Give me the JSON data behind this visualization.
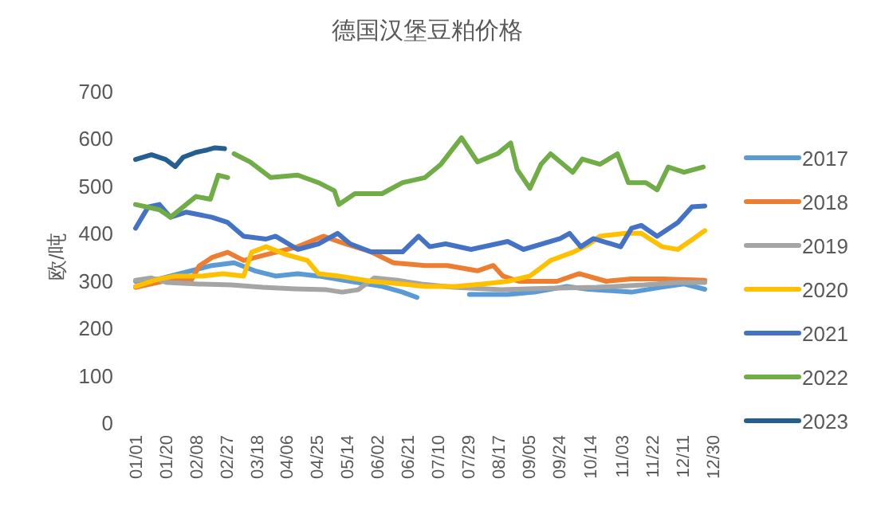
{
  "chart_data": {
    "type": "line",
    "title": "德国汉堡豆粕价格",
    "ylabel": "欧/吨",
    "xlim": [
      "--01-01",
      "--12-30"
    ],
    "ylim": [
      0,
      700
    ],
    "yticks": [
      0,
      100,
      200,
      300,
      400,
      500,
      600,
      700
    ],
    "xticks": [
      {
        "value": "--01-01",
        "label": "01/01"
      },
      {
        "value": "--01-20",
        "label": "01/20"
      },
      {
        "value": "--02-08",
        "label": "02/08"
      },
      {
        "value": "--02-27",
        "label": "02/27"
      },
      {
        "value": "--03-18",
        "label": "03/18"
      },
      {
        "value": "--04-06",
        "label": "04/06"
      },
      {
        "value": "--04-25",
        "label": "04/25"
      },
      {
        "value": "--05-14",
        "label": "05/14"
      },
      {
        "value": "--06-02",
        "label": "06/02"
      },
      {
        "value": "--06-21",
        "label": "06/21"
      },
      {
        "value": "--07-10",
        "label": "07/10"
      },
      {
        "value": "--07-29",
        "label": "07/29"
      },
      {
        "value": "--08-17",
        "label": "08/17"
      },
      {
        "value": "--09-05",
        "label": "09/05"
      },
      {
        "value": "--09-24",
        "label": "09/24"
      },
      {
        "value": "--10-14",
        "label": "10/14"
      },
      {
        "value": "--11-03",
        "label": "11/03"
      },
      {
        "value": "--11-22",
        "label": "11/22"
      },
      {
        "value": "--12-11",
        "label": "12/11"
      },
      {
        "value": "--12-30",
        "label": "12/30"
      }
    ],
    "grid": false,
    "legend": "right",
    "marker": "none",
    "line_style": "solid",
    "series": [
      {
        "name": "2017",
        "color": "#5b9bd5",
        "x": [
          "--01-01",
          "--01-16",
          "--02-18",
          "--03-04",
          "--03-17",
          "--03-30",
          "--04-13",
          "--04-26",
          "--05-16",
          "--06-05",
          "--06-18",
          "--06-27",
          "--07-10",
          "--07-30",
          "--08-23",
          "--09-09",
          "--09-29",
          "--10-13",
          "--11-09",
          "--11-27",
          "--12-12",
          "--12-25"
        ],
        "values": [
          298,
          303,
          331,
          337,
          320,
          309,
          314,
          309,
          298,
          287,
          275,
          264,
          null,
          270,
          270,
          275,
          287,
          281,
          275,
          285,
          292,
          281
        ]
      },
      {
        "name": "2018",
        "color": "#ed7d31",
        "x": [
          "--01-01",
          "--01-21",
          "--02-05",
          "--02-10",
          "--02-18",
          "--02-28",
          "--03-10",
          "--03-24",
          "--04-13",
          "--04-29",
          "--05-13",
          "--05-29",
          "--06-12",
          "--07-02",
          "--07-16",
          "--08-04",
          "--08-14",
          "--08-20",
          "--08-30",
          "--09-23",
          "--10-07",
          "--10-24",
          "--11-09",
          "--11-28",
          "--12-25"
        ],
        "values": [
          285,
          300,
          300,
          330,
          348,
          359,
          342,
          354,
          371,
          393,
          377,
          360,
          337,
          331,
          331,
          320,
          331,
          309,
          298,
          298,
          314,
          298,
          303,
          303,
          300
        ]
      },
      {
        "name": "2019",
        "color": "#a5a5a5",
        "x": [
          "--01-01",
          "--01-11",
          "--01-21",
          "--02-10",
          "--03-02",
          "--03-22",
          "--04-11",
          "--05-01",
          "--05-11",
          "--05-21",
          "--05-31",
          "--06-15",
          "--06-30",
          "--07-20",
          "--08-19",
          "--09-18",
          "--10-18",
          "--11-17",
          "--12-07",
          "--12-25"
        ],
        "values": [
          300,
          305,
          295,
          292,
          290,
          285,
          282,
          280,
          275,
          280,
          305,
          300,
          292,
          285,
          280,
          283,
          285,
          290,
          295,
          295
        ]
      },
      {
        "name": "2020",
        "color": "#ffc000",
        "x": [
          "--01-01",
          "--01-16",
          "--01-26",
          "--02-12",
          "--02-25",
          "--03-10",
          "--03-15",
          "--03-24",
          "--04-06",
          "--04-19",
          "--04-26",
          "--05-09",
          "--05-29",
          "--06-18",
          "--07-02",
          "--07-21",
          "--08-07",
          "--08-23",
          "--09-06",
          "--09-19",
          "--10-03",
          "--10-13",
          "--10-20",
          "--11-05",
          "--11-15",
          "--11-28",
          "--12-08",
          "--12-18",
          "--12-25"
        ],
        "values": [
          287,
          303,
          309,
          309,
          314,
          309,
          359,
          371,
          354,
          342,
          314,
          309,
          298,
          292,
          287,
          287,
          292,
          298,
          309,
          342,
          359,
          376,
          393,
          399,
          399,
          371,
          365,
          388,
          405
        ]
      },
      {
        "name": "2021",
        "color": "#4472c4",
        "x": [
          "--01-01",
          "--01-04",
          "--01-09",
          "--01-16",
          "--01-23",
          "--02-02",
          "--02-18",
          "--02-28",
          "--03-10",
          "--03-24",
          "--03-30",
          "--04-13",
          "--04-26",
          "--05-08",
          "--05-16",
          "--05-29",
          "--06-18",
          "--06-28",
          "--07-05",
          "--07-15",
          "--07-31",
          "--08-23",
          "--09-02",
          "--09-25",
          "--10-01",
          "--10-08",
          "--10-16",
          "--11-02",
          "--11-09",
          "--11-15",
          "--11-25",
          "--12-08",
          "--12-17",
          "--12-25"
        ],
        "values": [
          410,
          427,
          455,
          460,
          433,
          444,
          433,
          422,
          393,
          387,
          393,
          365,
          377,
          399,
          377,
          360,
          360,
          393,
          371,
          377,
          365,
          382,
          365,
          388,
          399,
          371,
          388,
          371,
          410,
          416,
          393,
          422,
          455,
          457
        ]
      },
      {
        "name": "2022",
        "color": "#70ad47",
        "x": [
          "--01-01",
          "--01-16",
          "--01-23",
          "--02-08",
          "--02-17",
          "--02-22",
          "--02-28",
          "--03-02",
          "--03-04",
          "--03-14",
          "--03-27",
          "--04-13",
          "--04-26",
          "--05-06",
          "--05-09",
          "--05-19",
          "--06-05",
          "--06-18",
          "--07-02",
          "--07-12",
          "--07-25",
          "--08-04",
          "--08-17",
          "--08-25",
          "--08-29",
          "--09-06",
          "--09-13",
          "--09-19",
          "--10-03",
          "--10-09",
          "--10-20",
          "--10-31",
          "--11-07",
          "--11-18",
          "--11-25",
          "--12-02",
          "--12-12",
          "--12-24"
        ],
        "values": [
          460,
          449,
          433,
          477,
          471,
          522,
          517,
          null,
          567,
          550,
          517,
          522,
          506,
          489,
          460,
          483,
          483,
          506,
          517,
          545,
          601,
          550,
          568,
          590,
          534,
          494,
          545,
          567,
          528,
          556,
          545,
          567,
          506,
          506,
          491,
          539,
          528,
          539
        ]
      },
      {
        "name": "2023",
        "color": "#255e91",
        "x": [
          "--01-01",
          "--01-11",
          "--01-20",
          "--01-26",
          "--01-31",
          "--02-08",
          "--02-15",
          "--02-20",
          "--02-26"
        ],
        "values": [
          555,
          565,
          555,
          540,
          560,
          570,
          575,
          580,
          578
        ]
      }
    ]
  }
}
